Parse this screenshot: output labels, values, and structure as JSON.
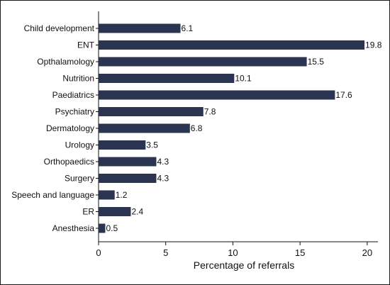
{
  "chart_data": {
    "type": "bar",
    "orientation": "horizontal",
    "categories": [
      "Child development",
      "ENT",
      "Opthalamology",
      "Nutrition",
      "Paediatrics",
      "Psychiatry",
      "Dermatology",
      "Urology",
      "Orthopaedics",
      "Surgery",
      "Speech and language",
      "ER",
      "Anesthesia"
    ],
    "values": [
      6.1,
      19.8,
      15.5,
      10.1,
      17.6,
      7.8,
      6.8,
      3.5,
      4.3,
      4.3,
      1.2,
      2.4,
      0.5
    ],
    "value_labels": [
      "6.1",
      "19.8",
      "15.5",
      "10.1",
      "17.6",
      "7.8",
      "6.8",
      "3.5",
      "4.3",
      "4.3",
      "1.2",
      "2.4",
      "0.5"
    ],
    "xlabel": "Percentage of referrals",
    "ylabel": "",
    "xlim": [
      0,
      20.8
    ],
    "xticks": [
      0,
      5,
      10,
      15,
      20
    ],
    "grid": false,
    "legend": "none",
    "bar_color": "#2b3450"
  }
}
